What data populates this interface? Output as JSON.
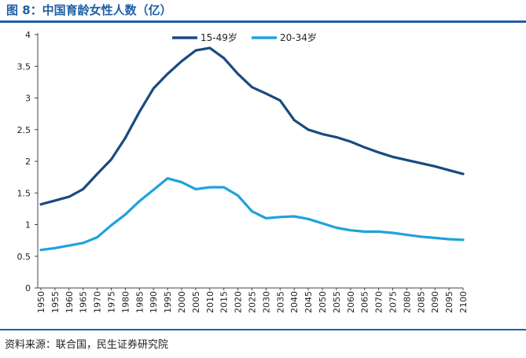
{
  "header": {
    "title": "图 8：中国育龄女性人数（亿）"
  },
  "footer": {
    "source": "资料来源：联合国，民生证券研究院"
  },
  "colors": {
    "accent": "#1f5fa5",
    "series_1": "#1a4a80",
    "series_2": "#1fa2dc"
  },
  "chart_data": {
    "type": "line",
    "title": "图 8：中国育龄女性人数（亿）",
    "xlabel": "",
    "ylabel": "",
    "ylim": [
      0,
      4
    ],
    "yticks": [
      "0",
      "0.5",
      "1",
      "1.5",
      "2",
      "2.5",
      "3",
      "3.5",
      "4"
    ],
    "x": [
      "1950",
      "1955",
      "1960",
      "1965",
      "1970",
      "1975",
      "1980",
      "1985",
      "1990",
      "1995",
      "2000",
      "2005",
      "2010",
      "2015",
      "2020",
      "2025",
      "2030",
      "2035",
      "2040",
      "2045",
      "2050",
      "2055",
      "2060",
      "2065",
      "2070",
      "2075",
      "2080",
      "2085",
      "2090",
      "2095",
      "2100"
    ],
    "grid": false,
    "legend": "top-center",
    "series": [
      {
        "name": "15-49岁",
        "values": [
          1.32,
          1.38,
          1.44,
          1.56,
          1.8,
          2.03,
          2.37,
          2.78,
          3.15,
          3.38,
          3.58,
          3.75,
          3.79,
          3.63,
          3.38,
          3.17,
          3.07,
          2.96,
          2.65,
          2.5,
          2.43,
          2.38,
          2.31,
          2.22,
          2.14,
          2.07,
          2.02,
          1.97,
          1.92,
          1.86,
          1.8
        ]
      },
      {
        "name": "20-34岁",
        "values": [
          0.6,
          0.63,
          0.67,
          0.71,
          0.8,
          0.99,
          1.16,
          1.37,
          1.55,
          1.73,
          1.67,
          1.56,
          1.59,
          1.59,
          1.46,
          1.21,
          1.1,
          1.12,
          1.13,
          1.09,
          1.02,
          0.95,
          0.91,
          0.89,
          0.89,
          0.87,
          0.84,
          0.81,
          0.79,
          0.77,
          0.76
        ]
      }
    ]
  }
}
